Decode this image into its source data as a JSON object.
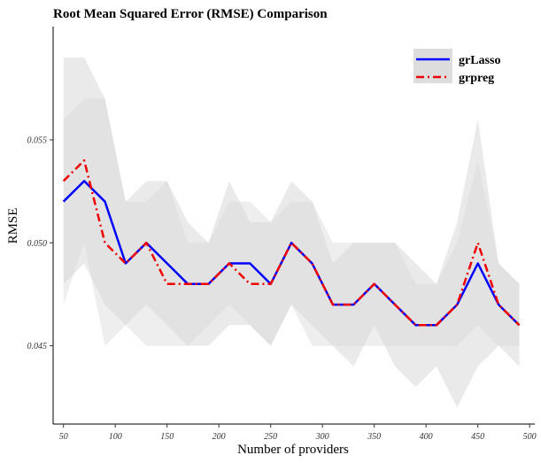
{
  "chart_data": {
    "type": "line",
    "title": "Root Mean Squared Error (RMSE) Comparison",
    "xlabel": "Number of providers",
    "ylabel": "RMSE",
    "xlim": [
      40,
      505
    ],
    "ylim": [
      0.0412,
      0.0605
    ],
    "x_ticks": [
      50,
      100,
      150,
      200,
      250,
      300,
      350,
      400,
      450,
      500
    ],
    "y_ticks": [
      0.045,
      0.05,
      0.055
    ],
    "y_tick_labels": [
      "0.045",
      "0.050",
      "0.055"
    ],
    "legend_position": "top-right",
    "grid": false,
    "x": [
      50,
      70,
      90,
      110,
      130,
      150,
      170,
      190,
      210,
      230,
      250,
      270,
      290,
      310,
      330,
      350,
      370,
      390,
      410,
      430,
      450,
      470,
      490
    ],
    "series": [
      {
        "name": "grLasso",
        "color": "#0000ff",
        "dash": "solid",
        "values": [
          0.052,
          0.053,
          0.052,
          0.049,
          0.05,
          0.049,
          0.048,
          0.048,
          0.049,
          0.049,
          0.048,
          0.05,
          0.049,
          0.047,
          0.047,
          0.048,
          0.047,
          0.046,
          0.046,
          0.047,
          0.049,
          0.047,
          0.046
        ],
        "band_lower": [
          0.048,
          0.049,
          0.047,
          0.046,
          0.047,
          0.046,
          0.045,
          0.045,
          0.046,
          0.046,
          0.045,
          0.047,
          0.046,
          0.045,
          0.044,
          0.046,
          0.044,
          0.043,
          0.044,
          0.042,
          0.044,
          0.045,
          0.044
        ],
        "band_upper": [
          0.059,
          0.059,
          0.057,
          0.052,
          0.053,
          0.053,
          0.051,
          0.05,
          0.053,
          0.051,
          0.051,
          0.053,
          0.052,
          0.049,
          0.05,
          0.05,
          0.05,
          0.049,
          0.048,
          0.051,
          0.056,
          0.049,
          0.048
        ]
      },
      {
        "name": "grpreg",
        "color": "#ee0000",
        "dash": "dashdot",
        "values": [
          0.053,
          0.054,
          0.05,
          0.049,
          0.05,
          0.048,
          0.048,
          0.048,
          0.049,
          0.048,
          0.048,
          0.05,
          0.049,
          0.047,
          0.047,
          0.048,
          0.047,
          0.046,
          0.046,
          0.047,
          0.05,
          0.047,
          0.046
        ],
        "band_lower": [
          0.047,
          0.05,
          0.045,
          0.046,
          0.045,
          0.045,
          0.045,
          0.046,
          0.047,
          0.046,
          0.045,
          0.047,
          0.045,
          0.045,
          0.045,
          0.045,
          0.045,
          0.045,
          0.045,
          0.045,
          0.046,
          0.045,
          0.045
        ],
        "band_upper": [
          0.056,
          0.057,
          0.057,
          0.052,
          0.052,
          0.053,
          0.05,
          0.05,
          0.052,
          0.052,
          0.051,
          0.052,
          0.052,
          0.05,
          0.05,
          0.05,
          0.05,
          0.048,
          0.048,
          0.05,
          0.054,
          0.049,
          0.048
        ]
      }
    ]
  }
}
